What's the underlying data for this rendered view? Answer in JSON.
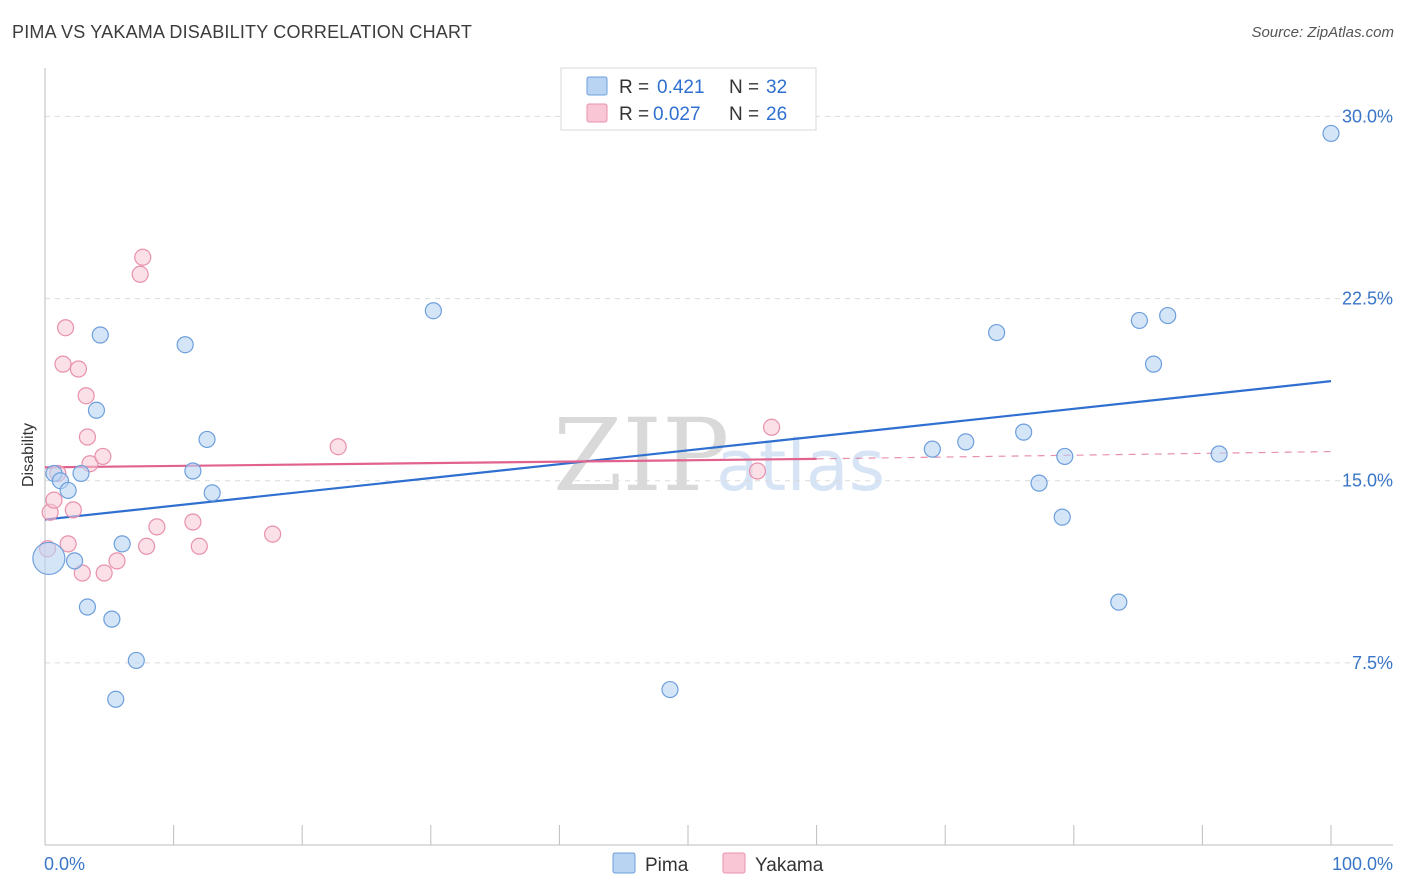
{
  "header": {
    "title": "PIMA VS YAKAMA DISABILITY CORRELATION CHART",
    "source": "Source: ZipAtlas.com"
  },
  "colors": {
    "pima_fill": "#b9d3f3",
    "pima_stroke": "#6d9fdc",
    "pima_line": "#2f6fd0",
    "yakama_fill": "#f8c6d5",
    "yakama_stroke": "#e891ab",
    "yakama_line": "#e0628d",
    "tick_text": "#3a76c8"
  },
  "legend": {
    "rows": [
      {
        "r_label": "R =",
        "r_value": "0.421",
        "n_label": "N =",
        "n_value": "32"
      },
      {
        "r_label": "R =",
        "r_value": "0.027",
        "n_label": "N =",
        "n_value": "26"
      }
    ]
  },
  "bottom_legend": [
    "Pima",
    "Yakama"
  ],
  "watermark": {
    "zip": "ZIP",
    "atlas": "atlas"
  },
  "chart_data": {
    "type": "scatter",
    "title": "PIMA VS YAKAMA DISABILITY CORRELATION CHART",
    "xlabel": "",
    "ylabel": "Disability",
    "xlim": [
      0,
      100
    ],
    "ylim": [
      0,
      31.5
    ],
    "x_tick_labels": [
      "0.0%",
      "100.0%"
    ],
    "y_ticks": [
      7.5,
      15.0,
      22.5,
      30.0
    ],
    "y_tick_labels": [
      "7.5%",
      "15.0%",
      "22.5%",
      "30.0%"
    ],
    "grid": true,
    "series": [
      {
        "name": "Pima",
        "r": 0.421,
        "n": 32,
        "points": [
          {
            "x": 0.3,
            "y": 11.8,
            "big": true
          },
          {
            "x": 0.7,
            "y": 15.3
          },
          {
            "x": 1.2,
            "y": 15.0
          },
          {
            "x": 1.8,
            "y": 14.6
          },
          {
            "x": 2.3,
            "y": 11.7
          },
          {
            "x": 2.8,
            "y": 15.3
          },
          {
            "x": 3.3,
            "y": 9.8
          },
          {
            "x": 4.0,
            "y": 17.9
          },
          {
            "x": 4.3,
            "y": 21.0
          },
          {
            "x": 5.2,
            "y": 9.3
          },
          {
            "x": 5.5,
            "y": 6.0
          },
          {
            "x": 6.0,
            "y": 12.4
          },
          {
            "x": 7.1,
            "y": 7.6
          },
          {
            "x": 10.9,
            "y": 20.6
          },
          {
            "x": 11.5,
            "y": 15.4
          },
          {
            "x": 12.6,
            "y": 16.7
          },
          {
            "x": 13.0,
            "y": 14.5
          },
          {
            "x": 30.2,
            "y": 22.0
          },
          {
            "x": 48.6,
            "y": 6.4
          },
          {
            "x": 69.0,
            "y": 16.3
          },
          {
            "x": 71.6,
            "y": 16.6
          },
          {
            "x": 74.0,
            "y": 21.1
          },
          {
            "x": 76.1,
            "y": 17.0
          },
          {
            "x": 77.3,
            "y": 14.9
          },
          {
            "x": 79.3,
            "y": 16.0
          },
          {
            "x": 79.1,
            "y": 13.5
          },
          {
            "x": 83.5,
            "y": 10.0
          },
          {
            "x": 85.1,
            "y": 21.6
          },
          {
            "x": 86.2,
            "y": 19.8
          },
          {
            "x": 87.3,
            "y": 21.8
          },
          {
            "x": 91.3,
            "y": 16.1
          },
          {
            "x": 100.0,
            "y": 29.3
          }
        ],
        "trend": {
          "x0": 0,
          "y0": 13.4,
          "x1": 100,
          "y1": 19.1
        }
      },
      {
        "name": "Yakama",
        "r": 0.027,
        "n": 26,
        "points": [
          {
            "x": 0.2,
            "y": 12.2
          },
          {
            "x": 0.4,
            "y": 13.7
          },
          {
            "x": 0.7,
            "y": 14.2
          },
          {
            "x": 1.0,
            "y": 15.3
          },
          {
            "x": 1.4,
            "y": 19.8
          },
          {
            "x": 1.6,
            "y": 21.3
          },
          {
            "x": 1.8,
            "y": 12.4
          },
          {
            "x": 2.2,
            "y": 13.8
          },
          {
            "x": 2.6,
            "y": 19.6
          },
          {
            "x": 2.9,
            "y": 11.2
          },
          {
            "x": 3.2,
            "y": 18.5
          },
          {
            "x": 3.3,
            "y": 16.8
          },
          {
            "x": 3.5,
            "y": 15.7
          },
          {
            "x": 4.5,
            "y": 16.0
          },
          {
            "x": 4.6,
            "y": 11.2
          },
          {
            "x": 5.6,
            "y": 11.7
          },
          {
            "x": 7.4,
            "y": 23.5
          },
          {
            "x": 7.6,
            "y": 24.2
          },
          {
            "x": 7.9,
            "y": 12.3
          },
          {
            "x": 8.7,
            "y": 13.1
          },
          {
            "x": 11.5,
            "y": 13.3
          },
          {
            "x": 12.0,
            "y": 12.3
          },
          {
            "x": 17.7,
            "y": 12.8
          },
          {
            "x": 22.8,
            "y": 16.4
          },
          {
            "x": 55.4,
            "y": 15.4
          },
          {
            "x": 56.5,
            "y": 17.2
          }
        ],
        "trend": {
          "x0": 0,
          "y0": 15.55,
          "x1": 60,
          "y1": 15.9
        },
        "trend_dashed": {
          "x0": 60,
          "y0": 15.9,
          "x1": 100,
          "y1": 16.2
        }
      }
    ]
  }
}
